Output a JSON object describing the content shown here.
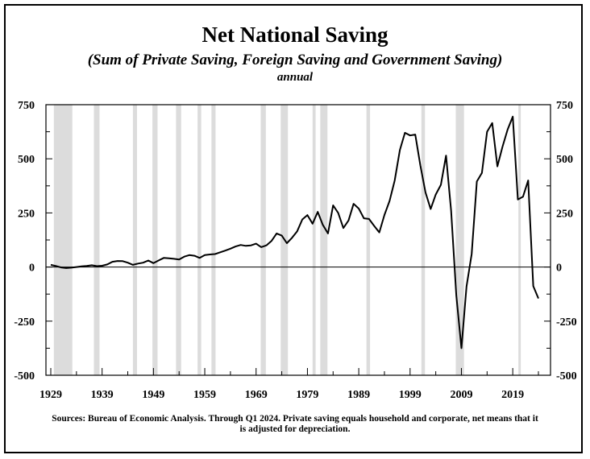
{
  "chart_data": {
    "type": "line",
    "title": "Net National Saving",
    "subtitle": "(Sum of Private Saving, Foreign Saving and Government Saving)",
    "frequency": "annual",
    "source": "Sources: Bureau of Economic Analysis. Through Q1 2024. Private saving equals household and corporate, net means that it is adjusted for depreciation.",
    "xlabel": "",
    "ylabel": "",
    "xlim": [
      1929,
      2024
    ],
    "ylim": [
      -500,
      750
    ],
    "x_ticks": [
      1929,
      1939,
      1949,
      1959,
      1969,
      1979,
      1989,
      1999,
      2009,
      2019
    ],
    "x_tick_labels": [
      "1929",
      "1939",
      "1949",
      "1959",
      "1969",
      "1979",
      "1989",
      "1999",
      "2009",
      "2019"
    ],
    "y_ticks": [
      -500,
      -250,
      0,
      250,
      500,
      750
    ],
    "y_tick_labels_left": [
      "-500",
      "-250",
      "0",
      "250",
      "500",
      "750"
    ],
    "y_tick_labels_right": [
      "-500",
      "-250",
      "0",
      "250",
      "500",
      "750"
    ],
    "grid": false,
    "zero_line": true,
    "recessions": [
      [
        1929.6,
        1933.2
      ],
      [
        1937.4,
        1938.5
      ],
      [
        1945.0,
        1945.8
      ],
      [
        1948.8,
        1949.8
      ],
      [
        1953.4,
        1954.4
      ],
      [
        1957.6,
        1958.3
      ],
      [
        1960.3,
        1961.1
      ],
      [
        1969.9,
        1970.9
      ],
      [
        1973.8,
        1975.2
      ],
      [
        1980.0,
        1980.6
      ],
      [
        1981.5,
        1982.9
      ],
      [
        1990.5,
        1991.2
      ],
      [
        2001.2,
        2001.9
      ],
      [
        2007.9,
        2009.5
      ],
      [
        2020.1,
        2020.4
      ]
    ],
    "series": [
      {
        "name": "Net National Saving",
        "color": "#000000",
        "x": [
          1929,
          1930,
          1931,
          1932,
          1933,
          1934,
          1935,
          1936,
          1937,
          1938,
          1939,
          1940,
          1941,
          1942,
          1943,
          1944,
          1945,
          1946,
          1947,
          1948,
          1949,
          1950,
          1951,
          1952,
          1953,
          1954,
          1955,
          1956,
          1957,
          1958,
          1959,
          1960,
          1961,
          1962,
          1963,
          1964,
          1965,
          1966,
          1967,
          1968,
          1969,
          1970,
          1971,
          1972,
          1973,
          1974,
          1975,
          1976,
          1977,
          1978,
          1979,
          1980,
          1981,
          1982,
          1983,
          1984,
          1985,
          1986,
          1987,
          1988,
          1989,
          1990,
          1991,
          1992,
          1993,
          1994,
          1995,
          1996,
          1997,
          1998,
          1999,
          2000,
          2001,
          2002,
          2003,
          2004,
          2005,
          2006,
          2007,
          2008,
          2009,
          2010,
          2011,
          2012,
          2013,
          2014,
          2015,
          2016,
          2017,
          2018,
          2019,
          2020,
          2021,
          2022,
          2023,
          2024
        ],
        "values": [
          10,
          5,
          -2,
          -5,
          -3,
          0,
          3,
          5,
          8,
          4,
          6,
          12,
          24,
          28,
          27,
          20,
          10,
          16,
          20,
          30,
          18,
          30,
          42,
          40,
          38,
          35,
          48,
          55,
          52,
          42,
          55,
          58,
          60,
          68,
          76,
          85,
          95,
          102,
          98,
          100,
          108,
          92,
          100,
          120,
          155,
          145,
          110,
          135,
          165,
          220,
          240,
          200,
          255,
          195,
          155,
          285,
          250,
          180,
          215,
          292,
          270,
          225,
          222,
          190,
          160,
          240,
          305,
          400,
          540,
          620,
          608,
          612,
          470,
          345,
          268,
          335,
          380,
          515,
          260,
          -130,
          -375,
          -90,
          60,
          395,
          435,
          625,
          665,
          465,
          555,
          635,
          695,
          312,
          325,
          400,
          -88,
          -145
        ]
      }
    ]
  }
}
